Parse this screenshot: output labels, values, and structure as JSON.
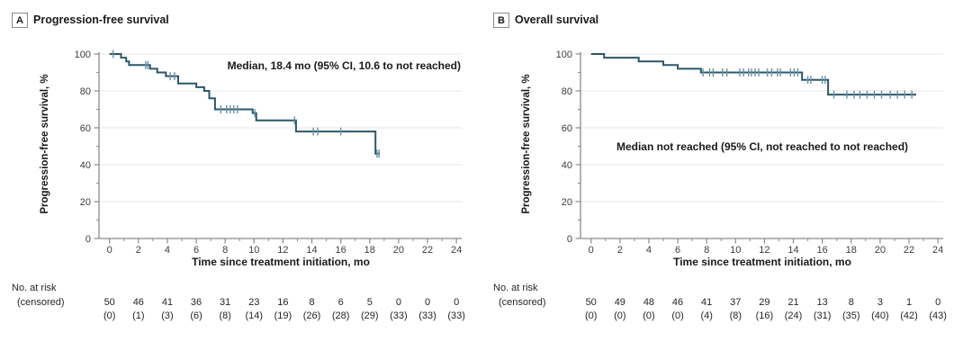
{
  "figure": {
    "panels": [
      {
        "label": "A",
        "title": "Progression-free survival",
        "y_axis_label": "Progression-free survival, %",
        "x_axis_label": "Time since treatment initiation, mo",
        "annotation": "Median, 18.4 mo (95% CI, 10.6 to not reached)",
        "risk_header": "No. at risk",
        "risk_subheader": "(censored)"
      },
      {
        "label": "B",
        "title": "Overall survival",
        "y_axis_label": "Progression-free survival, %",
        "x_axis_label": "Time since treatment initiation, mo",
        "annotation": "Median not reached (95% CI, not reached to not reached)",
        "risk_header": "No. at risk",
        "risk_subheader": "(censored)"
      }
    ]
  },
  "appearance": {
    "curve_color": "#2b5768",
    "censor_color": "#6b93a5",
    "axis_color": "#8a8a8a",
    "grid_color": "#ececec"
  },
  "chart_data": [
    {
      "type": "line",
      "subtype": "kaplan-meier-step",
      "title": "Progression-free survival",
      "xlabel": "Time since treatment initiation, mo",
      "ylabel": "Progression-free survival, %",
      "xlim": [
        0,
        24
      ],
      "ylim": [
        0,
        100
      ],
      "x_ticks": [
        0,
        2,
        4,
        6,
        8,
        10,
        12,
        14,
        16,
        18,
        20,
        22,
        24
      ],
      "y_ticks": [
        0,
        20,
        40,
        60,
        80,
        100
      ],
      "grid": "horizontal-light",
      "annotation": "Median, 18.4 mo (95% CI, 10.6 to not reached)",
      "steps": [
        [
          0,
          100
        ],
        [
          0.8,
          98
        ],
        [
          1.15,
          96
        ],
        [
          1.35,
          94
        ],
        [
          2.8,
          92
        ],
        [
          3.3,
          90
        ],
        [
          3.9,
          88
        ],
        [
          4.75,
          84
        ],
        [
          6.0,
          82
        ],
        [
          6.55,
          80
        ],
        [
          6.9,
          76
        ],
        [
          7.3,
          70
        ],
        [
          9.9,
          68
        ],
        [
          10.15,
          64
        ],
        [
          12.9,
          58
        ],
        [
          18.4,
          46
        ]
      ],
      "end_time": 18.7,
      "censor_marks": [
        [
          0.25,
          100
        ],
        [
          2.5,
          94
        ],
        [
          2.65,
          94
        ],
        [
          4.2,
          88
        ],
        [
          4.5,
          88
        ],
        [
          7.7,
          70
        ],
        [
          8.1,
          70
        ],
        [
          8.35,
          70
        ],
        [
          8.6,
          70
        ],
        [
          8.85,
          70
        ],
        [
          10.05,
          68
        ],
        [
          12.8,
          64
        ],
        [
          14.1,
          58
        ],
        [
          14.4,
          58
        ],
        [
          16.0,
          58
        ],
        [
          18.5,
          46
        ],
        [
          18.65,
          46
        ]
      ],
      "risk_table": {
        "times": [
          0,
          2,
          4,
          6,
          8,
          10,
          12,
          14,
          16,
          18,
          20,
          22,
          24
        ],
        "at_risk": [
          "50",
          "46",
          "41",
          "36",
          "31",
          "23",
          "16",
          "8",
          "6",
          "5",
          "0",
          "0",
          "0"
        ],
        "censored": [
          "(0)",
          "(1)",
          "(3)",
          "(6)",
          "(8)",
          "(14)",
          "(19)",
          "(26)",
          "(28)",
          "(29)",
          "(33)",
          "(33)",
          "(33)"
        ]
      }
    },
    {
      "type": "line",
      "subtype": "kaplan-meier-step",
      "title": "Overall survival",
      "xlabel": "Time since treatment initiation, mo",
      "ylabel": "Progression-free survival, %",
      "xlim": [
        0,
        24
      ],
      "ylim": [
        0,
        100
      ],
      "x_ticks": [
        0,
        2,
        4,
        6,
        8,
        10,
        12,
        14,
        16,
        18,
        20,
        22,
        24
      ],
      "y_ticks": [
        0,
        20,
        40,
        60,
        80,
        100
      ],
      "grid": "horizontal-light",
      "annotation": "Median not reached (95% CI, not reached to not reached)",
      "steps": [
        [
          0,
          100
        ],
        [
          0.9,
          98
        ],
        [
          3.3,
          96
        ],
        [
          5.0,
          94
        ],
        [
          6.0,
          92
        ],
        [
          7.6,
          90
        ],
        [
          14.6,
          86
        ],
        [
          16.4,
          78
        ]
      ],
      "end_time": 22.5,
      "censor_marks": [
        [
          7.75,
          90
        ],
        [
          8.2,
          90
        ],
        [
          8.45,
          90
        ],
        [
          9.1,
          90
        ],
        [
          9.4,
          90
        ],
        [
          10.3,
          90
        ],
        [
          10.55,
          90
        ],
        [
          10.9,
          90
        ],
        [
          11.1,
          90
        ],
        [
          11.35,
          90
        ],
        [
          11.6,
          90
        ],
        [
          12.2,
          90
        ],
        [
          12.5,
          90
        ],
        [
          12.9,
          90
        ],
        [
          13.1,
          90
        ],
        [
          13.8,
          90
        ],
        [
          14.05,
          90
        ],
        [
          14.3,
          90
        ],
        [
          15.0,
          86
        ],
        [
          15.2,
          86
        ],
        [
          16.0,
          86
        ],
        [
          16.2,
          86
        ],
        [
          16.8,
          78
        ],
        [
          17.7,
          78
        ],
        [
          18.2,
          78
        ],
        [
          18.6,
          78
        ],
        [
          19.1,
          78
        ],
        [
          19.6,
          78
        ],
        [
          20.1,
          78
        ],
        [
          20.7,
          78
        ],
        [
          21.2,
          78
        ],
        [
          21.7,
          78
        ],
        [
          22.2,
          78
        ]
      ],
      "risk_table": {
        "times": [
          0,
          2,
          4,
          6,
          8,
          10,
          12,
          14,
          16,
          18,
          20,
          22,
          24
        ],
        "at_risk": [
          "50",
          "49",
          "48",
          "46",
          "41",
          "37",
          "29",
          "21",
          "13",
          "8",
          "3",
          "1",
          "0"
        ],
        "censored": [
          "(0)",
          "(0)",
          "(0)",
          "(0)",
          "(4)",
          "(8)",
          "(16)",
          "(24)",
          "(31)",
          "(35)",
          "(40)",
          "(42)",
          "(43)"
        ]
      }
    }
  ]
}
